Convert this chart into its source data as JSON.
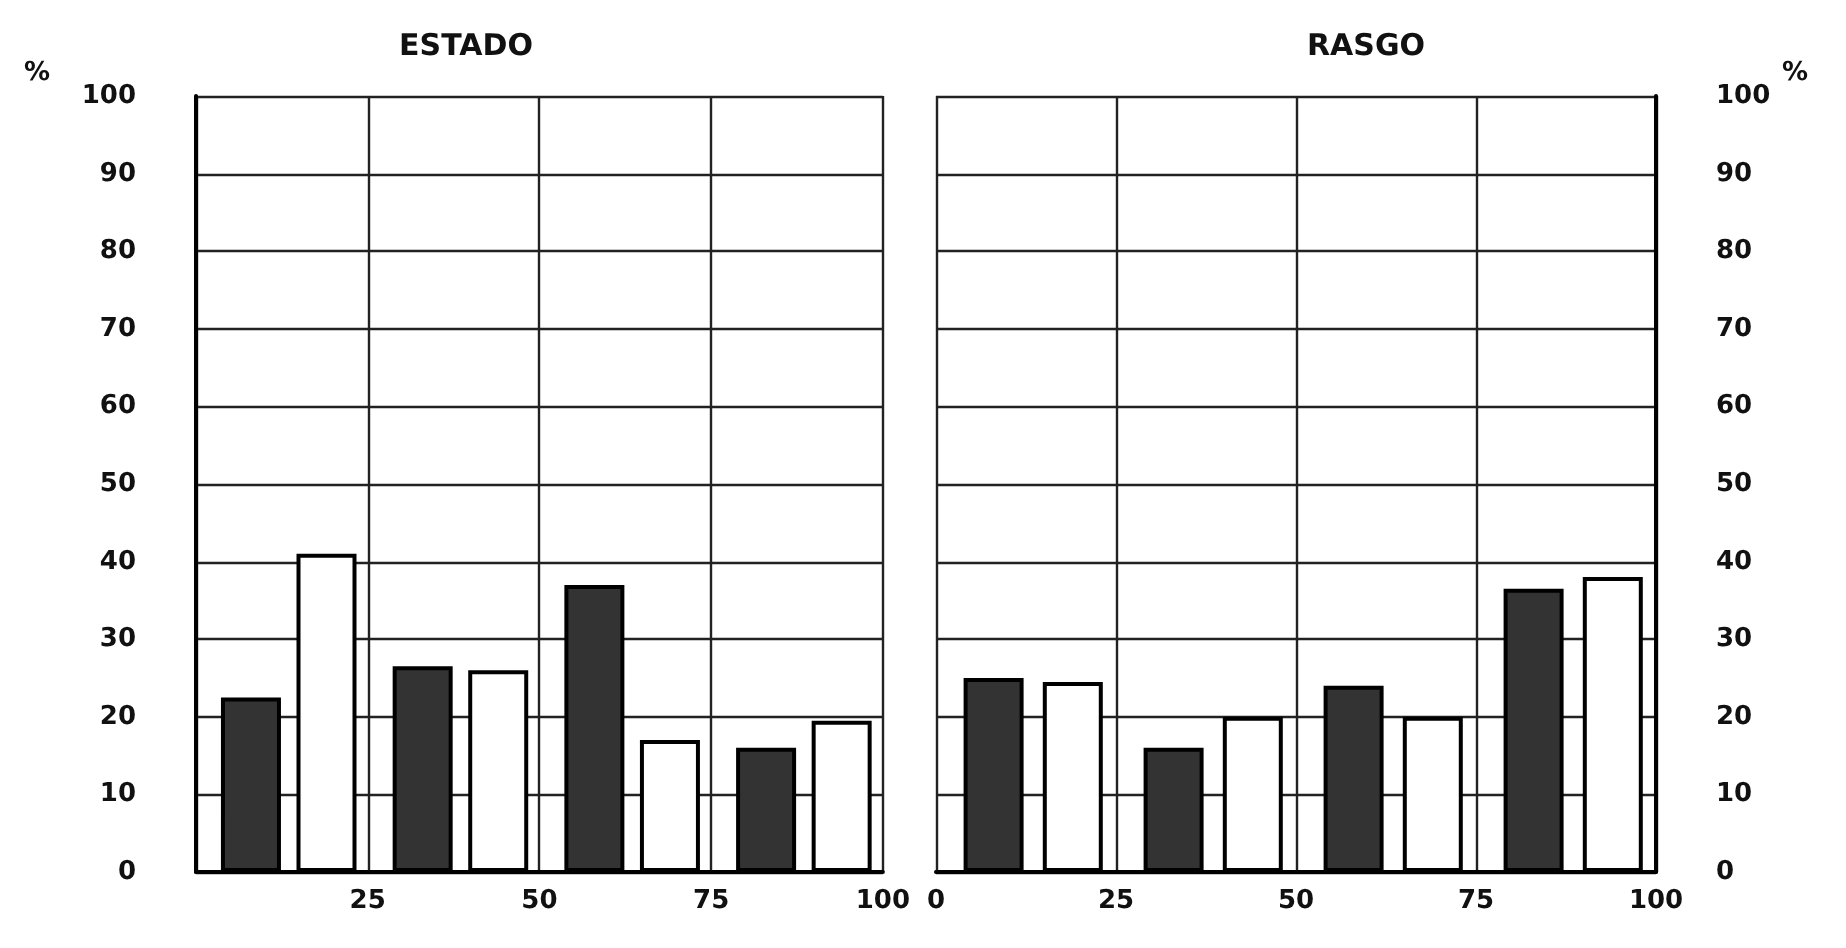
{
  "chart_data": [
    {
      "type": "bar",
      "title": "ESTADO",
      "ylabel": "%",
      "xlim": [
        0,
        100
      ],
      "xticks": [
        {
          "value": 0,
          "label": null
        },
        25,
        50,
        75,
        100
      ],
      "ylim": [
        0,
        100
      ],
      "yticks": [
        0,
        10,
        20,
        30,
        40,
        50,
        60,
        70,
        80,
        90,
        100
      ],
      "grid": true,
      "series": [
        {
          "color": "#333333",
          "x": [
            8,
            33,
            58,
            83
          ],
          "values": [
            22.5,
            26.5,
            37,
            16
          ]
        },
        {
          "color": "#ffffff",
          "x": [
            19,
            44,
            69,
            94
          ],
          "values": [
            41,
            26,
            17,
            19.5
          ]
        }
      ]
    },
    {
      "type": "bar",
      "title": "RASGO",
      "y2label": "%",
      "xlim": [
        0,
        100
      ],
      "xticks": [
        0,
        25,
        50,
        75,
        100
      ],
      "y2lim": [
        0,
        100
      ],
      "y2ticks": [
        0,
        10,
        20,
        30,
        40,
        50,
        60,
        70,
        80,
        90,
        100
      ],
      "grid": true,
      "series": [
        {
          "color": "#333333",
          "axis": "y2",
          "x": [
            8,
            33,
            58,
            83
          ],
          "values": [
            25,
            16,
            24,
            36.5
          ]
        },
        {
          "color": "#ffffff",
          "axis": "y2",
          "x": [
            19,
            44,
            69,
            94
          ],
          "values": [
            24.5,
            20,
            20,
            38
          ]
        }
      ]
    }
  ]
}
